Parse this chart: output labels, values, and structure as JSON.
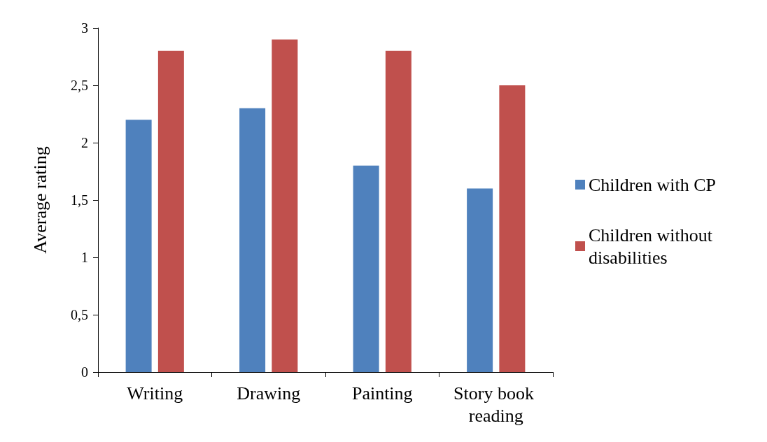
{
  "chart_data": {
    "type": "bar",
    "ylabel": "Average rating",
    "categories": [
      "Writing",
      "Drawing",
      "Painting",
      "Story book reading"
    ],
    "series": [
      {
        "name": "Children with CP",
        "color": "#4f81bd",
        "values": [
          2.2,
          2.3,
          1.8,
          1.6
        ]
      },
      {
        "name": "Children without disabilities",
        "color": "#c0504d",
        "values": [
          2.8,
          2.9,
          2.8,
          2.5
        ]
      }
    ],
    "ylim": [
      0,
      3
    ],
    "yticks": [
      0,
      {
        "value": 0.5,
        "label": "0,5"
      },
      1,
      {
        "value": 1.5,
        "label": "1,5"
      },
      2,
      {
        "value": 2.5,
        "label": "2,5"
      },
      3
    ],
    "grid": false,
    "legend": "right"
  }
}
